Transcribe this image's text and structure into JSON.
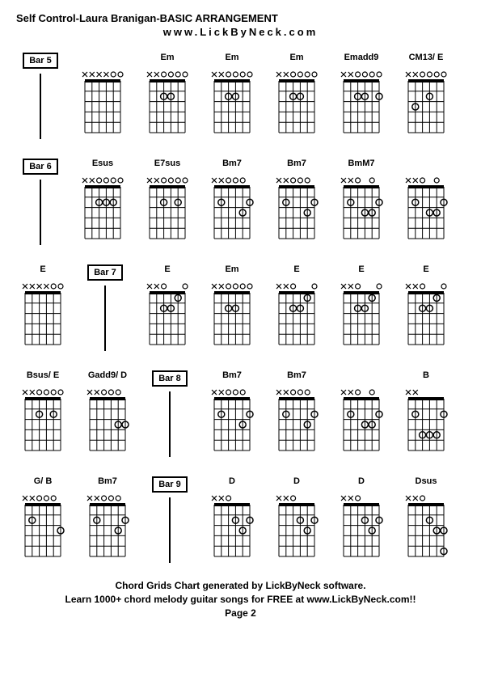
{
  "title": "Self Control-Laura Branigan-BASIC ARRANGEMENT",
  "url": "www.LickByNeck.com",
  "footer_line1": "Chord Grids Chart generated by LickByNeck software.",
  "footer_line2": "Learn 1000+ chord melody guitar songs for FREE at www.LickByNeck.com!!",
  "page_label": "Page 2",
  "grid": {
    "strings": 6,
    "frets": 5,
    "width": 60,
    "height": 90,
    "color_line": "#000000",
    "color_dot": "#000000",
    "color_open": "#000000"
  },
  "rows": [
    [
      {
        "type": "bar",
        "label": "Bar 5"
      },
      {
        "type": "chord",
        "label": "",
        "marks": [
          "x",
          "x",
          "x",
          "x",
          "o",
          "o"
        ],
        "dots": []
      },
      {
        "type": "chord",
        "label": "Em",
        "marks": [
          "x",
          "x",
          "o",
          "o",
          "o",
          "o"
        ],
        "dots": [
          [
            3,
            2
          ],
          [
            4,
            2
          ]
        ]
      },
      {
        "type": "chord",
        "label": "Em",
        "marks": [
          "x",
          "x",
          "o",
          "o",
          "o",
          "o"
        ],
        "dots": [
          [
            3,
            2
          ],
          [
            4,
            2
          ]
        ]
      },
      {
        "type": "chord",
        "label": "Em",
        "marks": [
          "x",
          "x",
          "o",
          "o",
          "o",
          "o"
        ],
        "dots": [
          [
            3,
            2
          ],
          [
            4,
            2
          ]
        ]
      },
      {
        "type": "chord",
        "label": "Emadd9",
        "marks": [
          "x",
          "x",
          "o",
          "o",
          "o",
          "o"
        ],
        "dots": [
          [
            3,
            2
          ],
          [
            4,
            2
          ],
          [
            1,
            2
          ]
        ]
      },
      {
        "type": "chord",
        "label": "CM13/ E",
        "marks": [
          "x",
          "x",
          "o",
          "o",
          "o",
          "o"
        ],
        "dots": [
          [
            3,
            2
          ],
          [
            5,
            3
          ]
        ]
      }
    ],
    [
      {
        "type": "bar",
        "label": "Bar 6"
      },
      {
        "type": "chord",
        "label": "Esus",
        "marks": [
          "x",
          "x",
          "o",
          "o",
          "o",
          "o"
        ],
        "dots": [
          [
            3,
            2
          ],
          [
            4,
            2
          ],
          [
            2,
            2
          ]
        ]
      },
      {
        "type": "chord",
        "label": "E7sus",
        "marks": [
          "x",
          "x",
          "o",
          "o",
          "o",
          "o"
        ],
        "dots": [
          [
            4,
            2
          ],
          [
            2,
            2
          ]
        ]
      },
      {
        "type": "chord",
        "label": "Bm7",
        "marks": [
          "x",
          "x",
          "o",
          "o",
          "o",
          ""
        ],
        "dots": [
          [
            1,
            2
          ],
          [
            5,
            2
          ],
          [
            2,
            3
          ]
        ]
      },
      {
        "type": "chord",
        "label": "Bm7",
        "marks": [
          "x",
          "x",
          "o",
          "o",
          "o",
          ""
        ],
        "dots": [
          [
            1,
            2
          ],
          [
            5,
            2
          ],
          [
            2,
            3
          ]
        ]
      },
      {
        "type": "chord",
        "label": "BmM7",
        "marks": [
          "x",
          "x",
          "o",
          "",
          "o",
          ""
        ],
        "dots": [
          [
            1,
            2
          ],
          [
            5,
            2
          ],
          [
            3,
            3
          ],
          [
            2,
            3
          ]
        ]
      },
      {
        "type": "chord",
        "label": "",
        "marks": [
          "x",
          "x",
          "o",
          "",
          "o",
          ""
        ],
        "dots": [
          [
            1,
            2
          ],
          [
            5,
            2
          ],
          [
            3,
            3
          ],
          [
            2,
            3
          ]
        ]
      }
    ],
    [
      {
        "type": "chord",
        "label": "E",
        "marks": [
          "x",
          "x",
          "x",
          "x",
          "o",
          "o"
        ],
        "dots": []
      },
      {
        "type": "bar",
        "label": "Bar 7"
      },
      {
        "type": "chord",
        "label": "E",
        "marks": [
          "x",
          "x",
          "o",
          "",
          "",
          "o"
        ],
        "dots": [
          [
            2,
            1
          ],
          [
            3,
            2
          ],
          [
            4,
            2
          ]
        ]
      },
      {
        "type": "chord",
        "label": "Em",
        "marks": [
          "x",
          "x",
          "o",
          "o",
          "o",
          "o"
        ],
        "dots": [
          [
            3,
            2
          ],
          [
            4,
            2
          ]
        ]
      },
      {
        "type": "chord",
        "label": "E",
        "marks": [
          "x",
          "x",
          "o",
          "",
          "",
          "o"
        ],
        "dots": [
          [
            2,
            1
          ],
          [
            3,
            2
          ],
          [
            4,
            2
          ]
        ]
      },
      {
        "type": "chord",
        "label": "E",
        "marks": [
          "x",
          "x",
          "o",
          "",
          "",
          "o"
        ],
        "dots": [
          [
            2,
            1
          ],
          [
            3,
            2
          ],
          [
            4,
            2
          ]
        ]
      },
      {
        "type": "chord",
        "label": "E",
        "marks": [
          "x",
          "x",
          "o",
          "",
          "",
          "o"
        ],
        "dots": [
          [
            2,
            1
          ],
          [
            3,
            2
          ],
          [
            4,
            2
          ]
        ]
      }
    ],
    [
      {
        "type": "chord",
        "label": "Bsus/ E",
        "marks": [
          "x",
          "x",
          "o",
          "o",
          "o",
          "o"
        ],
        "dots": [
          [
            4,
            2
          ],
          [
            2,
            2
          ]
        ]
      },
      {
        "type": "chord",
        "label": "Gadd9/ D",
        "marks": [
          "x",
          "x",
          "o",
          "o",
          "o",
          ""
        ],
        "dots": [
          [
            1,
            3
          ],
          [
            2,
            3
          ]
        ]
      },
      {
        "type": "bar",
        "label": "Bar 8"
      },
      {
        "type": "chord",
        "label": "Bm7",
        "marks": [
          "x",
          "x",
          "o",
          "o",
          "o",
          ""
        ],
        "dots": [
          [
            1,
            2
          ],
          [
            5,
            2
          ],
          [
            2,
            3
          ]
        ]
      },
      {
        "type": "chord",
        "label": "Bm7",
        "marks": [
          "x",
          "x",
          "o",
          "o",
          "o",
          ""
        ],
        "dots": [
          [
            1,
            2
          ],
          [
            5,
            2
          ],
          [
            2,
            3
          ]
        ]
      },
      {
        "type": "chord",
        "label": "",
        "marks": [
          "x",
          "x",
          "o",
          "",
          "o",
          ""
        ],
        "dots": [
          [
            1,
            2
          ],
          [
            5,
            2
          ],
          [
            3,
            3
          ],
          [
            2,
            3
          ]
        ]
      },
      {
        "type": "chord",
        "label": "B",
        "marks": [
          "x",
          "x",
          "",
          "",
          "",
          ""
        ],
        "dots": [
          [
            1,
            2
          ],
          [
            5,
            2
          ],
          [
            2,
            4
          ],
          [
            3,
            4
          ],
          [
            4,
            4
          ]
        ]
      }
    ],
    [
      {
        "type": "chord",
        "label": "G/ B",
        "marks": [
          "x",
          "x",
          "o",
          "o",
          "o",
          ""
        ],
        "dots": [
          [
            5,
            2
          ],
          [
            1,
            3
          ]
        ]
      },
      {
        "type": "chord",
        "label": "Bm7",
        "marks": [
          "x",
          "x",
          "o",
          "o",
          "o",
          ""
        ],
        "dots": [
          [
            1,
            2
          ],
          [
            5,
            2
          ],
          [
            2,
            3
          ]
        ]
      },
      {
        "type": "bar",
        "label": "Bar 9"
      },
      {
        "type": "chord",
        "label": "D",
        "marks": [
          "x",
          "x",
          "o",
          "",
          "",
          ""
        ],
        "dots": [
          [
            1,
            2
          ],
          [
            2,
            3
          ],
          [
            3,
            2
          ]
        ]
      },
      {
        "type": "chord",
        "label": "D",
        "marks": [
          "x",
          "x",
          "o",
          "",
          "",
          ""
        ],
        "dots": [
          [
            1,
            2
          ],
          [
            2,
            3
          ],
          [
            3,
            2
          ]
        ]
      },
      {
        "type": "chord",
        "label": "D",
        "marks": [
          "x",
          "x",
          "o",
          "",
          "",
          ""
        ],
        "dots": [
          [
            1,
            2
          ],
          [
            2,
            3
          ],
          [
            3,
            2
          ]
        ]
      },
      {
        "type": "chord",
        "label": "Dsus",
        "marks": [
          "x",
          "x",
          "o",
          "",
          "",
          ""
        ],
        "dots": [
          [
            1,
            3
          ],
          [
            2,
            3
          ],
          [
            3,
            2
          ],
          [
            1,
            5
          ]
        ]
      }
    ]
  ]
}
